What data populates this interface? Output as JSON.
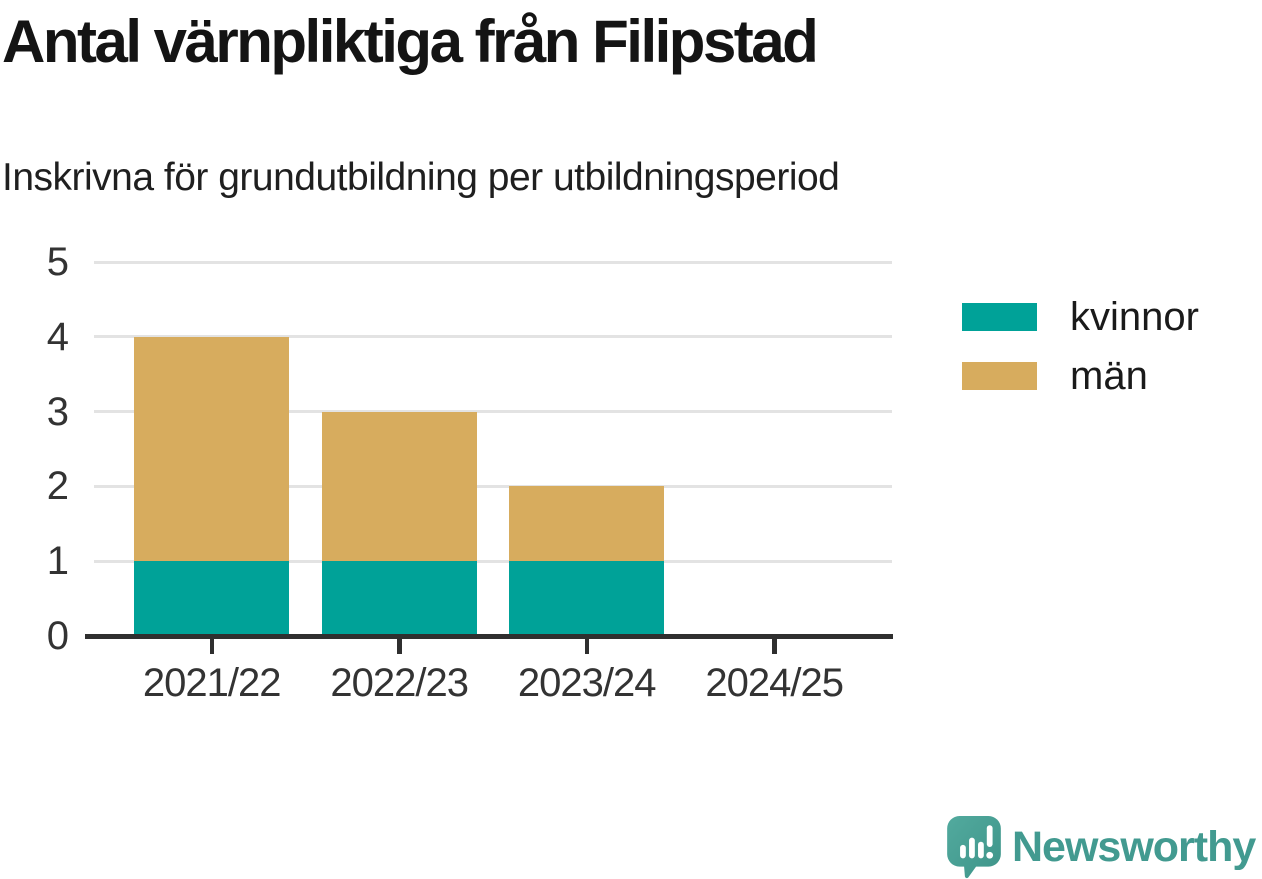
{
  "title": "Antal värnpliktiga från Filipstad",
  "subtitle": "Inskrivna för grundutbildning per utbildningsperiod",
  "chart_data": {
    "type": "bar",
    "stacked": true,
    "title": "Antal värnpliktiga från Filipstad",
    "subtitle": "Inskrivna för grundutbildning per utbildningsperiod",
    "categories": [
      "2021/22",
      "2022/23",
      "2023/24",
      "2024/25"
    ],
    "series": [
      {
        "name": "kvinnor",
        "color": "#00a298",
        "values": [
          1,
          1,
          1,
          0
        ]
      },
      {
        "name": "män",
        "color": "#d7ac5e",
        "values": [
          3,
          2,
          1,
          0
        ]
      }
    ],
    "xlabel": "",
    "ylabel": "",
    "ylim": [
      0,
      5
    ],
    "yticks": [
      0,
      1,
      2,
      3,
      4,
      5
    ],
    "grid": "horizontal",
    "legend_position": "right-top"
  },
  "legend": {
    "items": [
      {
        "label": "kvinnor",
        "color": "#00a298"
      },
      {
        "label": "män",
        "color": "#d7ac5e"
      }
    ]
  },
  "branding": {
    "wordmark": "Newsworthy",
    "logo_icon": "bar-chart-speech-bubble-icon",
    "wordmark_color": "#429a90",
    "bubble_color_top": "#52aa9e",
    "bubble_color_bottom": "#3e9489",
    "icon_glyph_color": "#ffffff"
  },
  "style": {
    "axis_color": "#2f2f2f",
    "grid_color": "#e3e3e3",
    "tick_label_color": "#333333",
    "title_color": "#141414",
    "background": "#ffffff"
  }
}
